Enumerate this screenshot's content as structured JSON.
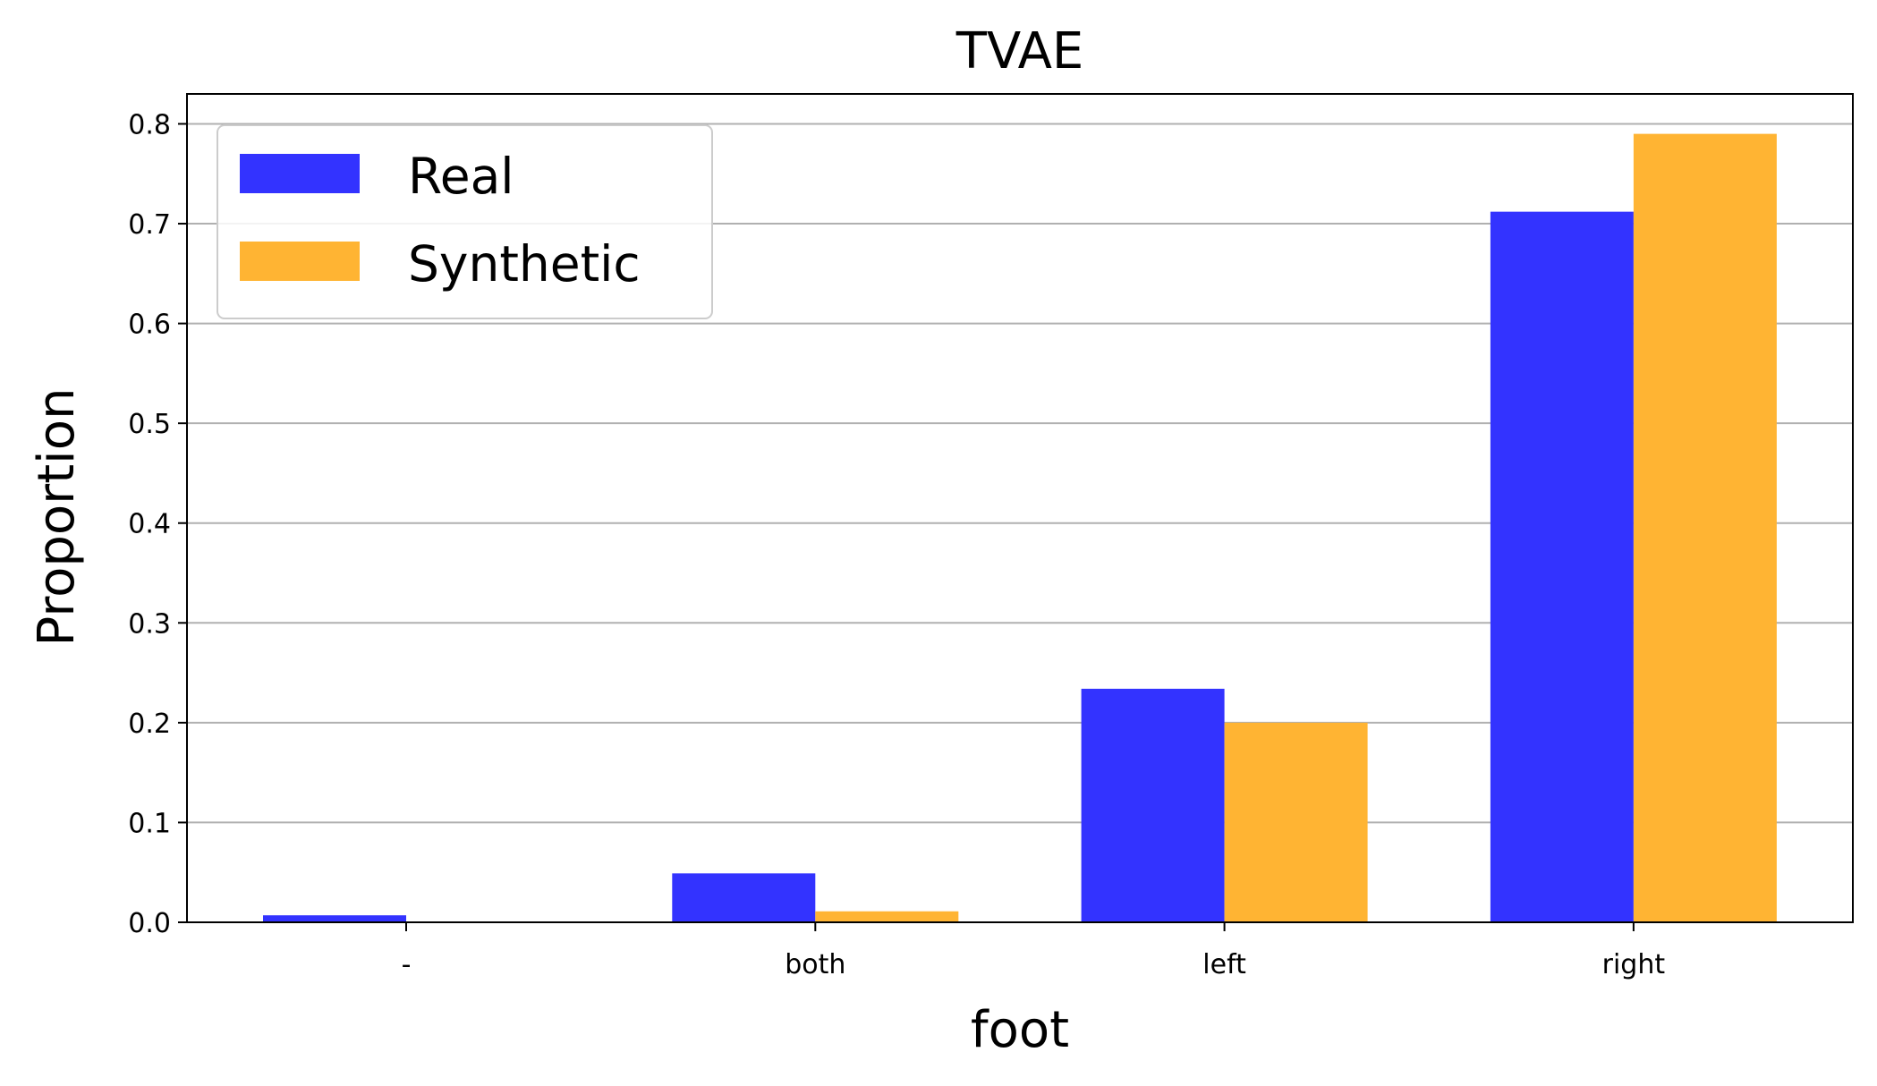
{
  "chart_data": {
    "type": "bar",
    "title": "TVAE",
    "xlabel": "foot",
    "ylabel": "Proportion",
    "categories": [
      "-",
      "both",
      "left",
      "right"
    ],
    "series": [
      {
        "name": "Real",
        "color": "#3333ff",
        "values": [
          0.007,
          0.049,
          0.234,
          0.712
        ]
      },
      {
        "name": "Synthetic",
        "color": "#ffb433",
        "values": [
          0.0,
          0.011,
          0.2,
          0.79
        ]
      }
    ],
    "ylim": [
      0,
      0.83
    ],
    "yticks": [
      "0.0",
      "0.1",
      "0.2",
      "0.3",
      "0.4",
      "0.5",
      "0.6",
      "0.7",
      "0.8"
    ],
    "grid": "y",
    "legend_position": "top-left"
  }
}
